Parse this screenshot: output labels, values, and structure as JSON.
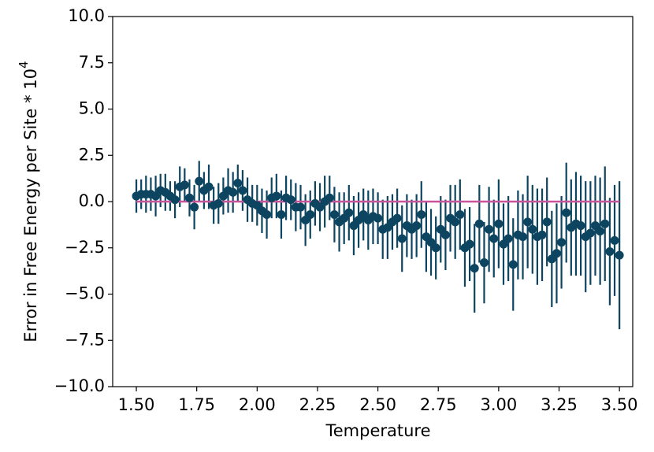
{
  "chart_data": {
    "type": "errorbar",
    "xlabel": "Temperature",
    "ylabel": "Error in Free Energy per Site * 10",
    "ylabel_sup": "4",
    "color": "#0d4560",
    "x": [
      1.5,
      1.52,
      1.54,
      1.56,
      1.58,
      1.6,
      1.62,
      1.64,
      1.66,
      1.68,
      1.7,
      1.72,
      1.74,
      1.76,
      1.78,
      1.8,
      1.82,
      1.84,
      1.86,
      1.88,
      1.9,
      1.92,
      1.94,
      1.96,
      1.98,
      2.0,
      2.02,
      2.04,
      2.06,
      2.08,
      2.1,
      2.12,
      2.14,
      2.16,
      2.18,
      2.2,
      2.22,
      2.24,
      2.26,
      2.28,
      2.3,
      2.32,
      2.34,
      2.36,
      2.38,
      2.4,
      2.42,
      2.44,
      2.46,
      2.48,
      2.5,
      2.52,
      2.54,
      2.56,
      2.58,
      2.6,
      2.62,
      2.64,
      2.66,
      2.68,
      2.7,
      2.72,
      2.74,
      2.76,
      2.78,
      2.8,
      2.82,
      2.84,
      2.86,
      2.88,
      2.9,
      2.92,
      2.94,
      2.96,
      2.98,
      3.0,
      3.02,
      3.04,
      3.06,
      3.08,
      3.1,
      3.12,
      3.14,
      3.16,
      3.18,
      3.2,
      3.22,
      3.24,
      3.26,
      3.28,
      3.3,
      3.32,
      3.34,
      3.36,
      3.38,
      3.4,
      3.42,
      3.44,
      3.46,
      3.48,
      3.5
    ],
    "values": [
      0.3,
      0.4,
      0.4,
      0.4,
      0.3,
      0.6,
      0.5,
      0.3,
      0.1,
      0.8,
      0.9,
      0.2,
      -0.3,
      1.1,
      0.6,
      0.8,
      -0.2,
      -0.1,
      0.3,
      0.6,
      0.5,
      1.0,
      0.6,
      0.1,
      -0.1,
      -0.2,
      -0.5,
      -0.7,
      0.2,
      0.3,
      -0.7,
      0.2,
      0.1,
      -0.3,
      -0.3,
      -1.0,
      -0.7,
      -0.1,
      -0.3,
      0.0,
      0.2,
      -0.7,
      -1.1,
      -0.9,
      -0.6,
      -1.3,
      -1.0,
      -0.7,
      -1.0,
      -0.8,
      -0.9,
      -1.5,
      -1.4,
      -1.1,
      -0.9,
      -2.0,
      -1.3,
      -1.5,
      -1.3,
      -0.7,
      -1.9,
      -2.2,
      -2.5,
      -1.5,
      -1.8,
      -0.9,
      -1.1,
      -0.7,
      -2.5,
      -2.3,
      -3.6,
      -1.2,
      -3.3,
      -1.5,
      -2.0,
      -1.2,
      -2.3,
      -2.0,
      -3.4,
      -1.8,
      -1.9,
      -1.1,
      -1.5,
      -1.9,
      -1.8,
      -1.1,
      -3.1,
      -2.8,
      -2.2,
      -0.6,
      -1.4,
      -1.2,
      -1.3,
      -1.9,
      -1.7,
      -1.3,
      -1.6,
      -1.2,
      -2.7,
      -2.1,
      -2.9
    ],
    "errors": [
      0.9,
      0.8,
      1.0,
      0.9,
      1.1,
      0.9,
      1.0,
      0.8,
      1.0,
      1.1,
      0.9,
      1.0,
      1.2,
      1.1,
      1.0,
      1.2,
      1.0,
      1.1,
      1.0,
      1.2,
      1.1,
      1.0,
      1.1,
      1.2,
      1.0,
      1.1,
      1.2,
      1.3,
      1.1,
      1.2,
      1.3,
      1.2,
      1.1,
      1.3,
      1.2,
      1.4,
      1.3,
      1.2,
      1.3,
      1.4,
      1.2,
      1.5,
      1.6,
      1.4,
      1.5,
      1.6,
      1.5,
      1.4,
      1.6,
      1.5,
      1.4,
      1.6,
      1.7,
      1.5,
      1.6,
      1.8,
      1.7,
      1.6,
      1.7,
      1.8,
      1.9,
      1.8,
      1.7,
      1.8,
      1.9,
      1.8,
      2.0,
      1.9,
      2.1,
      2.0,
      2.4,
      2.1,
      2.2,
      2.3,
      2.1,
      2.4,
      2.2,
      2.3,
      2.5,
      2.4,
      2.3,
      2.5,
      2.4,
      2.6,
      2.5,
      2.4,
      2.6,
      2.7,
      2.5,
      2.7,
      2.6,
      2.8,
      2.7,
      3.0,
      2.8,
      2.7,
      2.9,
      3.1,
      2.9,
      3.0,
      4.0
    ],
    "reference_line": {
      "x": [
        1.5,
        3.5
      ],
      "values": [
        0,
        0
      ],
      "color": "#c8559a"
    },
    "xlim": [
      1.402,
      3.555
    ],
    "ylim": [
      -10,
      10
    ],
    "xticks": [
      {
        "value": 1.5,
        "label": "1.50"
      },
      {
        "value": 1.75,
        "label": "1.75"
      },
      {
        "value": 2.0,
        "label": "2.00"
      },
      {
        "value": 2.25,
        "label": "2.25"
      },
      {
        "value": 2.5,
        "label": "2.50"
      },
      {
        "value": 2.75,
        "label": "2.75"
      },
      {
        "value": 3.0,
        "label": "3.00"
      },
      {
        "value": 3.25,
        "label": "3.25"
      },
      {
        "value": 3.5,
        "label": "3.50"
      }
    ],
    "yticks": [
      {
        "value": -10,
        "label": "−10.0"
      },
      {
        "value": -7.5,
        "label": "−7.5"
      },
      {
        "value": -5,
        "label": "−5.0"
      },
      {
        "value": -2.5,
        "label": "−2.5"
      },
      {
        "value": 0,
        "label": "0.0"
      },
      {
        "value": 2.5,
        "label": "2.5"
      },
      {
        "value": 5,
        "label": "5.0"
      },
      {
        "value": 7.5,
        "label": "7.5"
      },
      {
        "value": 10,
        "label": "10.0"
      }
    ],
    "grid": false
  }
}
